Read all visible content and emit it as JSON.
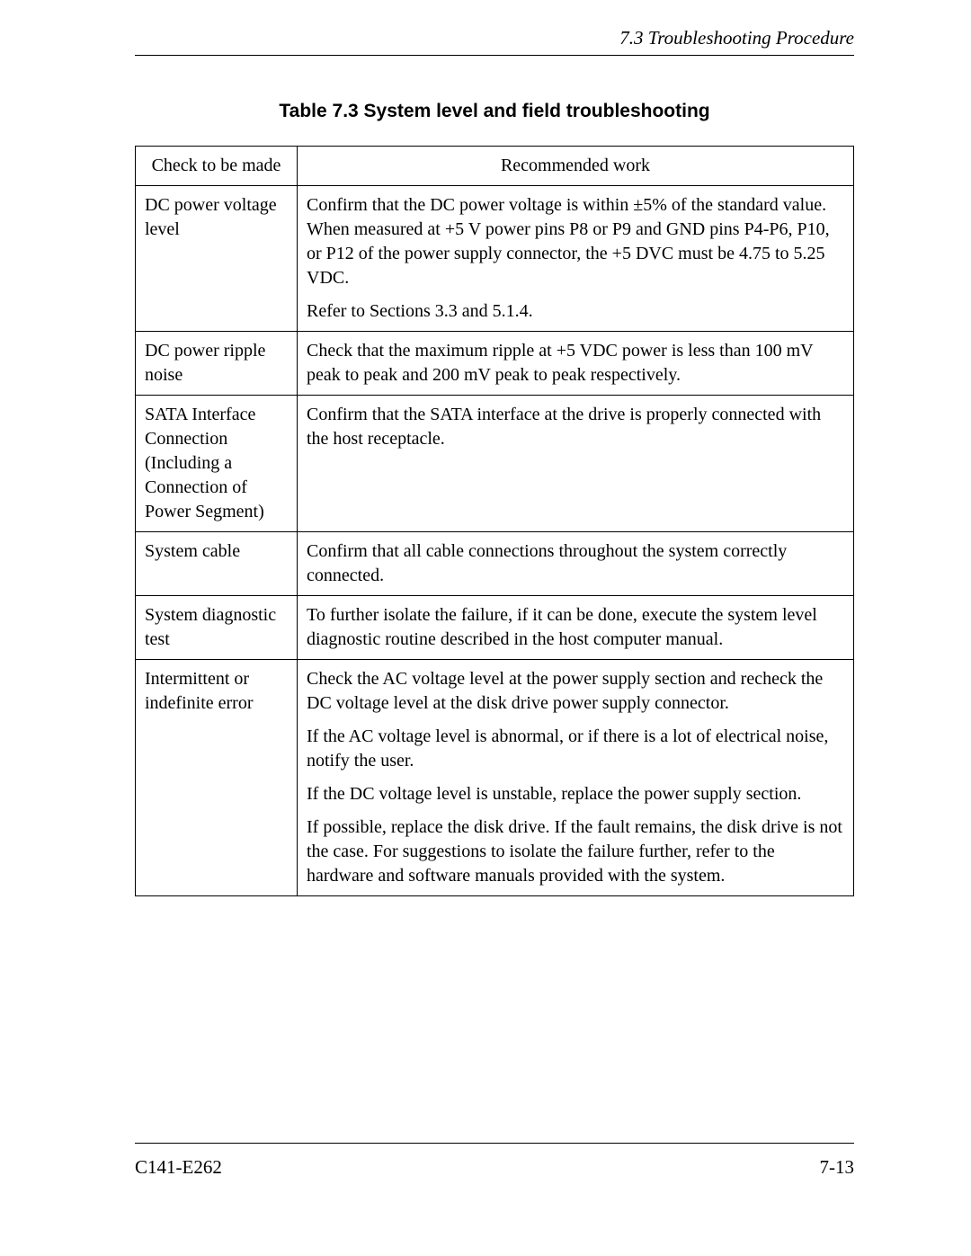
{
  "header": {
    "section_title": "7.3  Troubleshooting Procedure"
  },
  "table": {
    "caption": "Table 7.3  System level and field troubleshooting",
    "columns": [
      "Check to be made",
      "Recommended work"
    ],
    "rows": [
      {
        "check": "DC power voltage level",
        "work": [
          "Confirm that the DC power voltage is within ±5% of the standard value.  When measured at +5 V power pins P8 or P9 and GND pins P4-P6, P10, or P12 of the power supply connector, the +5 DVC must be 4.75 to 5.25 VDC.",
          "Refer to Sections 3.3 and 5.1.4."
        ]
      },
      {
        "check": "DC power ripple noise",
        "work": [
          "Check that the maximum ripple at +5 VDC power is less than 100 mV peak to peak and 200 mV peak to peak respectively."
        ]
      },
      {
        "check": "SATA Interface Connection (Including a Connection of Power Segment)",
        "work": [
          "Confirm that the SATA interface at the drive is properly connected with the host receptacle."
        ]
      },
      {
        "check": "System cable",
        "work": [
          "Confirm that all cable connections throughout the system correctly connected."
        ]
      },
      {
        "check": "System diagnostic test",
        "work": [
          "To further isolate the failure, if it can be done, execute the system level diagnostic routine described in the host computer manual."
        ]
      },
      {
        "check": "Intermittent or indefinite error",
        "work": [
          "Check the AC voltage level at the power supply section and recheck the DC voltage level at the disk drive power supply connector.",
          "If the AC voltage level is abnormal, or if there is a lot of electrical noise, notify the user.",
          "If the DC voltage level is unstable, replace the power supply section.",
          "If possible, replace the disk drive.  If the fault remains, the disk drive is not the case.  For suggestions to isolate the failure further, refer to the hardware and software manuals provided with the system."
        ]
      }
    ]
  },
  "footer": {
    "left": "C141-E262",
    "right": "7-13"
  }
}
